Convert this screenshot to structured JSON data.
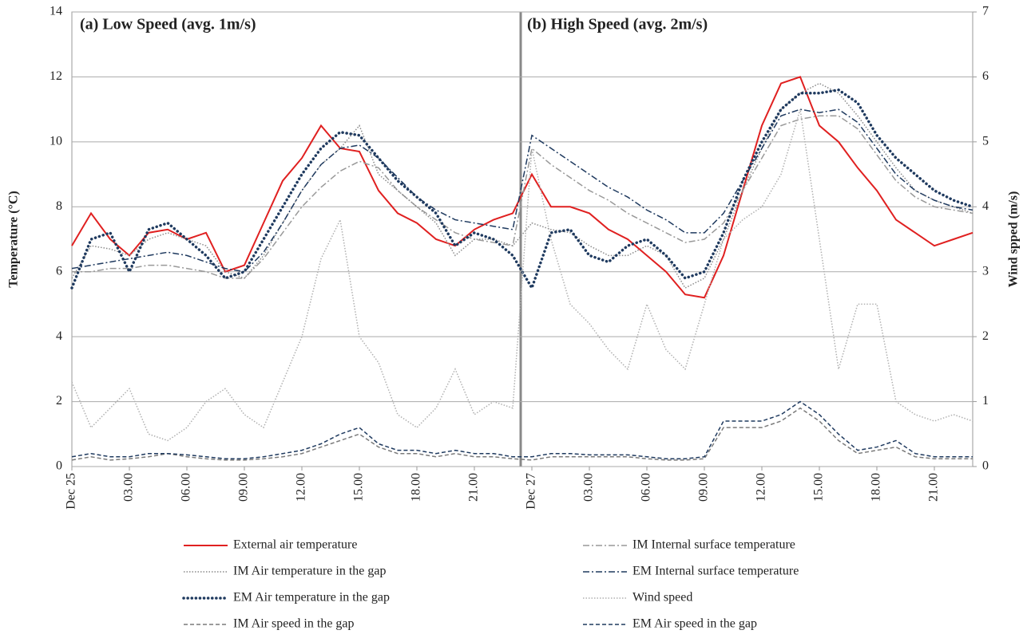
{
  "chart_data": {
    "type": "line",
    "annotations": [
      "(a) Low Speed (avg. 1m/s)",
      "(b) High Speed (avg. 2m/s)"
    ],
    "y_label": "Temperature (°C)",
    "y2_label": "Wind spped (m/s)",
    "categories": [
      "Dec 25",
      null,
      null,
      "03.00",
      null,
      null,
      "06.00",
      null,
      null,
      "09.00",
      null,
      null,
      "12.00",
      null,
      null,
      "15.00",
      null,
      null,
      "18.00",
      null,
      null,
      "21.00",
      null,
      null,
      "Dec 27",
      null,
      null,
      "03.00",
      null,
      null,
      "06.00",
      null,
      null,
      "09.00",
      null,
      null,
      "12.00",
      null,
      null,
      "15.00",
      null,
      null,
      "18.00",
      null,
      null,
      "21.00",
      null,
      null
    ],
    "ylim": [
      0,
      14
    ],
    "yticks": [
      0,
      2,
      4,
      6,
      8,
      10,
      12,
      14
    ],
    "y2lim": [
      0,
      7
    ],
    "y2ticks": [
      0,
      1,
      2,
      3,
      4,
      5,
      6,
      7
    ],
    "grid": true,
    "series": [
      {
        "name": "External air temperature",
        "color": "#e02020",
        "style": "solid",
        "values": [
          6.8,
          7.8,
          7.0,
          6.5,
          7.2,
          7.3,
          7.0,
          7.2,
          6.0,
          6.2,
          7.5,
          8.8,
          9.5,
          10.5,
          9.8,
          9.7,
          8.5,
          7.8,
          7.5,
          7.0,
          6.8,
          7.3,
          7.6,
          7.8,
          9.0,
          8.0,
          8.0,
          7.8,
          7.3,
          7.0,
          6.5,
          6.0,
          5.3,
          5.2,
          6.5,
          8.5,
          10.5,
          11.8,
          12.0,
          10.5,
          10.0,
          9.2,
          8.5,
          7.6,
          7.2,
          6.8,
          7.0,
          7.2
        ]
      },
      {
        "name": "IM Internal surface temperature",
        "color": "#999999",
        "style": "dashdot",
        "values": [
          6.0,
          6.0,
          6.1,
          6.1,
          6.2,
          6.2,
          6.1,
          6.0,
          5.8,
          5.8,
          6.4,
          7.2,
          8.0,
          8.6,
          9.1,
          9.4,
          9.2,
          8.5,
          8.0,
          7.6,
          7.2,
          7.0,
          6.9,
          6.8,
          9.8,
          9.3,
          8.9,
          8.5,
          8.2,
          7.8,
          7.5,
          7.2,
          6.9,
          7.0,
          7.5,
          8.5,
          9.5,
          10.5,
          10.7,
          10.8,
          10.8,
          10.4,
          9.6,
          8.8,
          8.3,
          8.0,
          7.9,
          7.8
        ]
      },
      {
        "name": "IM Air temperature in the gap",
        "color": "#8a8a8a",
        "style": "dotted",
        "values": [
          5.8,
          6.8,
          6.7,
          6.5,
          7.0,
          7.2,
          7.0,
          6.8,
          6.0,
          5.8,
          6.5,
          7.5,
          8.5,
          9.3,
          9.8,
          10.5,
          9.0,
          8.5,
          8.0,
          7.5,
          6.5,
          7.0,
          7.0,
          6.8,
          7.5,
          7.3,
          7.2,
          6.8,
          6.5,
          6.5,
          6.8,
          6.5,
          5.5,
          5.8,
          7.0,
          8.5,
          9.8,
          11.0,
          11.5,
          11.8,
          11.5,
          10.8,
          10.0,
          9.2,
          8.5,
          8.2,
          8.0,
          7.8
        ]
      },
      {
        "name": "EM Internal surface temperature",
        "color": "#1f3a5f",
        "style": "dashdot",
        "values": [
          6.1,
          6.2,
          6.3,
          6.4,
          6.5,
          6.6,
          6.5,
          6.3,
          6.1,
          6.0,
          6.6,
          7.5,
          8.5,
          9.3,
          9.8,
          9.9,
          9.5,
          8.9,
          8.3,
          7.9,
          7.6,
          7.5,
          7.4,
          7.3,
          10.2,
          9.8,
          9.4,
          9.0,
          8.6,
          8.3,
          7.9,
          7.6,
          7.2,
          7.2,
          7.8,
          8.8,
          9.8,
          10.8,
          11.0,
          10.9,
          11.0,
          10.6,
          9.8,
          9.0,
          8.5,
          8.2,
          8.0,
          7.9
        ]
      },
      {
        "name": "EM Air temperature in the gap",
        "color": "#1f3a5f",
        "style": "bigdot",
        "values": [
          5.5,
          7.0,
          7.2,
          6.0,
          7.3,
          7.5,
          7.0,
          6.5,
          5.8,
          6.0,
          7.0,
          8.0,
          9.0,
          9.8,
          10.3,
          10.2,
          9.5,
          8.8,
          8.3,
          7.8,
          6.8,
          7.2,
          7.0,
          6.5,
          5.5,
          7.2,
          7.3,
          6.5,
          6.3,
          6.8,
          7.0,
          6.5,
          5.8,
          6.0,
          7.2,
          8.8,
          10.0,
          11.0,
          11.5,
          11.5,
          11.6,
          11.2,
          10.2,
          9.5,
          9.0,
          8.5,
          8.2,
          8.0
        ]
      },
      {
        "name": "Wind speed",
        "color": "#b0b0b0",
        "style": "dotted",
        "axis": "y2",
        "values": [
          1.3,
          0.6,
          0.9,
          1.2,
          0.5,
          0.4,
          0.6,
          1.0,
          1.2,
          0.8,
          0.6,
          1.3,
          2.0,
          3.2,
          3.8,
          2.0,
          1.6,
          0.8,
          0.6,
          0.9,
          1.5,
          0.8,
          1.0,
          0.9,
          4.9,
          3.5,
          2.5,
          2.2,
          1.8,
          1.5,
          2.5,
          1.8,
          1.5,
          2.5,
          3.5,
          3.8,
          4.0,
          4.5,
          5.5,
          3.5,
          1.5,
          2.5,
          2.5,
          1.0,
          0.8,
          0.7,
          0.8,
          0.7
        ]
      },
      {
        "name": "IM Air speed in the gap",
        "color": "#7a7a7a",
        "style": "dashed",
        "axis": "y2",
        "values": [
          0.1,
          0.15,
          0.1,
          0.12,
          0.15,
          0.2,
          0.15,
          0.12,
          0.1,
          0.1,
          0.12,
          0.15,
          0.2,
          0.3,
          0.4,
          0.5,
          0.3,
          0.2,
          0.2,
          0.15,
          0.2,
          0.15,
          0.15,
          0.12,
          0.1,
          0.15,
          0.15,
          0.15,
          0.15,
          0.15,
          0.12,
          0.1,
          0.1,
          0.12,
          0.6,
          0.6,
          0.6,
          0.7,
          0.9,
          0.7,
          0.4,
          0.2,
          0.25,
          0.3,
          0.15,
          0.12,
          0.12,
          0.12
        ]
      },
      {
        "name": "EM Air speed in the gap",
        "color": "#1f3a5f",
        "style": "dashed",
        "axis": "y2",
        "values": [
          0.15,
          0.2,
          0.15,
          0.15,
          0.2,
          0.2,
          0.18,
          0.15,
          0.12,
          0.12,
          0.15,
          0.2,
          0.25,
          0.35,
          0.5,
          0.6,
          0.35,
          0.25,
          0.25,
          0.2,
          0.25,
          0.2,
          0.2,
          0.15,
          0.15,
          0.2,
          0.2,
          0.18,
          0.18,
          0.18,
          0.15,
          0.12,
          0.12,
          0.15,
          0.7,
          0.7,
          0.7,
          0.8,
          1.0,
          0.8,
          0.5,
          0.25,
          0.3,
          0.4,
          0.2,
          0.15,
          0.15,
          0.15
        ]
      }
    ]
  }
}
